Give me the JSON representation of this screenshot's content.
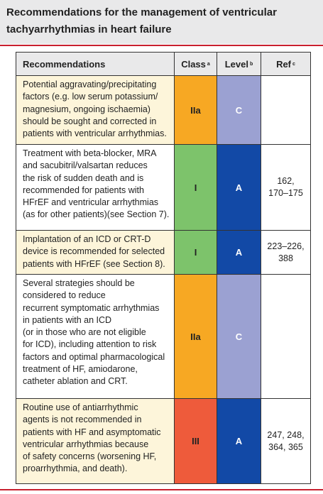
{
  "title": [
    "Recommendations for the management of ventricular",
    "tachyarrhythmias in heart failure"
  ],
  "table": {
    "header": [
      {
        "text": "Recommendations"
      },
      {
        "text": "Class",
        "sup": "a"
      },
      {
        "text": "Level",
        "sup": "b"
      },
      {
        "text": "Ref",
        "sup": "c"
      }
    ],
    "rows": [
      {
        "text": [
          "Potential aggravating/precipitating",
          "factors (e.g. low serum potassium/",
          "magnesium, ongoing ischaemia)",
          "should be sought and corrected in",
          "patients with ventricular arrhythmias."
        ],
        "class": "IIa",
        "class_color": "#f7a823",
        "level": "C",
        "level_color": "#9ba1d2",
        "shade": true
      },
      {
        "text": [
          "Treatment with beta-blocker, MRA",
          "and sacubitril/valsartan reduces",
          "the risk of sudden death and is",
          "recommended for patients with",
          "HFrEF and ventricular arrhythmias",
          "(as for other patients)(see Section 7)."
        ],
        "class": "I",
        "class_color": "#7dc36b",
        "level": "A",
        "level_color": "#1249a6",
        "ref": [
          "162,",
          "170–175"
        ],
        "shade": false
      },
      {
        "text": [
          "Implantation of an ICD or CRT-D",
          "device is recommended for selected",
          "patients with HFrEF (see Section 8)."
        ],
        "class": "I",
        "class_color": "#7dc36b",
        "level": "A",
        "level_color": "#1249a6",
        "ref": [
          "223–226,",
          "388"
        ],
        "shade": true
      },
      {
        "text": [
          "Several strategies should be",
          "considered to reduce",
          "recurrent symptomatic arrhythmias",
          "in patients with an ICD",
          "(or in those who are not eligible",
          "for ICD), including attention to risk",
          "factors and optimal pharmacological",
          "treatment of HF, amiodarone,",
          "catheter ablation and CRT."
        ],
        "class": "IIa",
        "class_color": "#f7a823",
        "level": "C",
        "level_color": "#9ba1d2",
        "shade": false
      },
      {
        "text": [
          "Routine use of antiarrhythmic",
          "agents is not recommended in",
          "patients with HF and asymptomatic",
          "ventricular arrhythmias because",
          "of safety concerns (worsening HF,",
          "proarrhythmia, and death)."
        ],
        "class": "III",
        "class_color": "#ee5b3b",
        "level": "A",
        "level_color": "#1249a6",
        "ref": [
          "247, 248,",
          "364, 365"
        ],
        "shade": true
      }
    ]
  }
}
